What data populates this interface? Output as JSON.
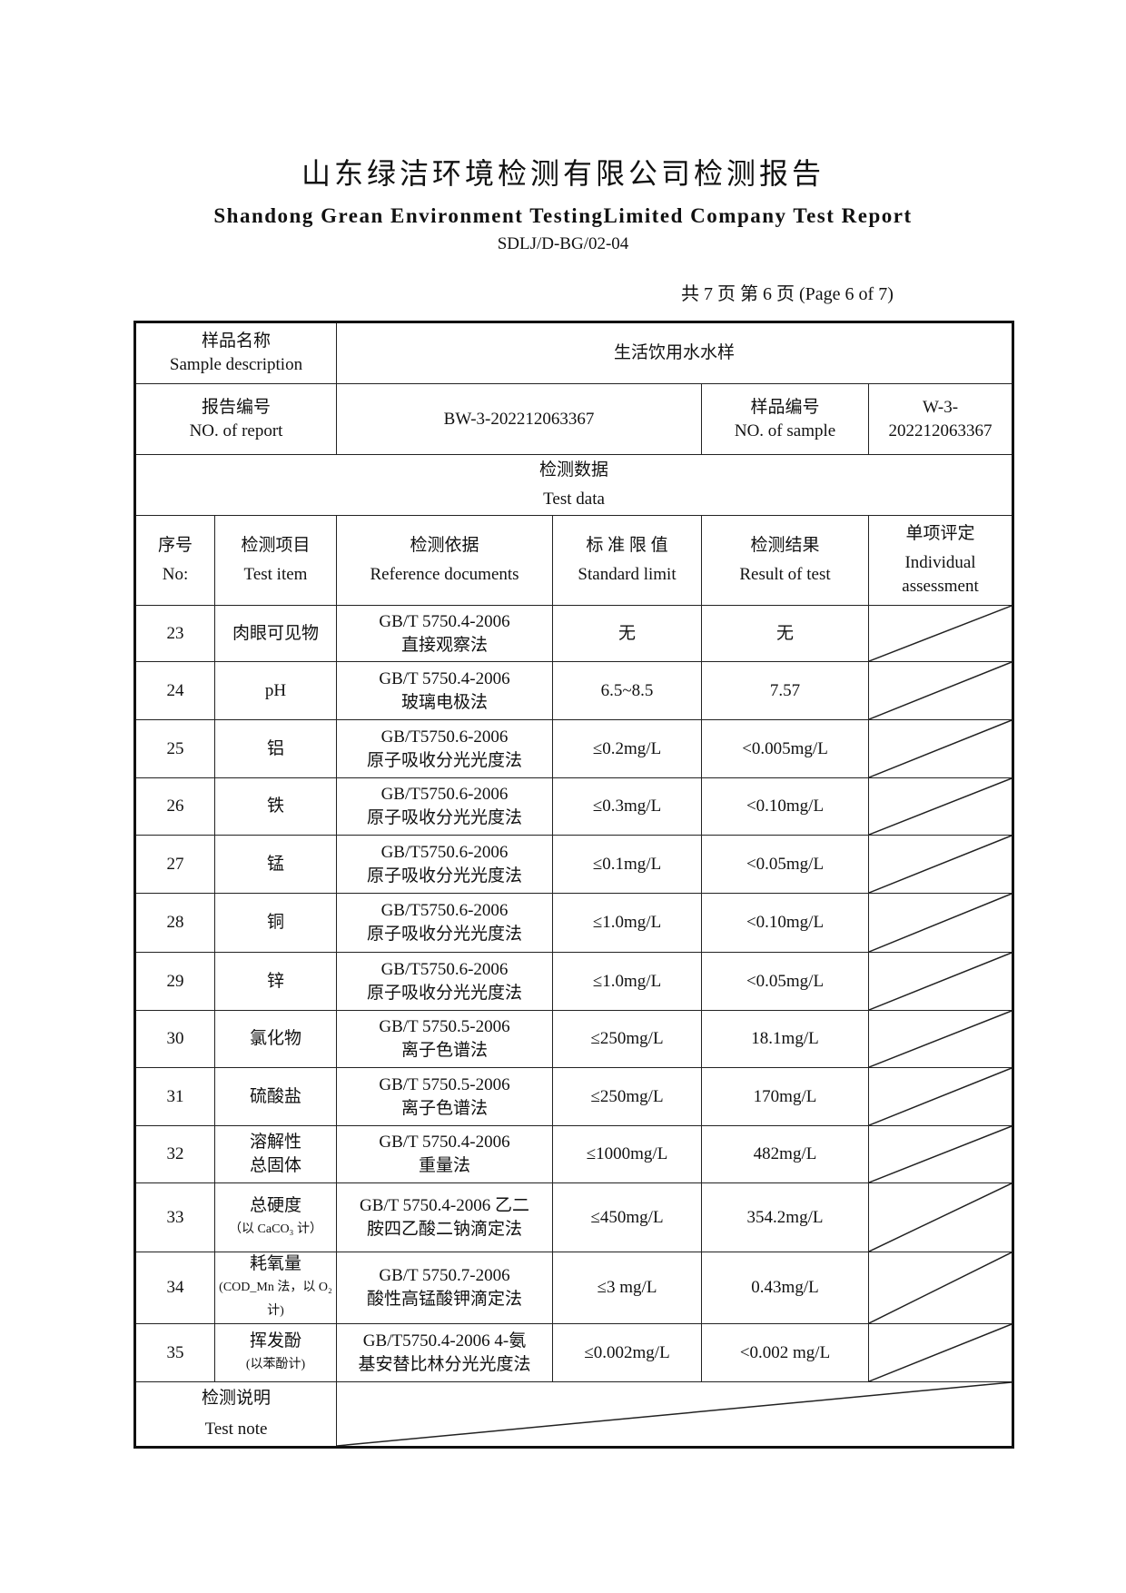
{
  "header": {
    "title_cn": "山东绿洁环境检测有限公司检测报告",
    "title_en": "Shandong Grean Environment TestingLimited Company Test Report",
    "doc_code": "SDLJ/D-BG/02-04",
    "page_info": "共 7 页  第 6 页  (Page 6 of 7)"
  },
  "sample": {
    "label_cn": "样品名称",
    "label_en": "Sample description",
    "value": "生活饮用水水样"
  },
  "report_no": {
    "label_cn": "报告编号",
    "label_en": "NO. of report",
    "value": "BW-3-202212063367"
  },
  "sample_no": {
    "label_cn": "样品编号",
    "label_en": "NO. of sample",
    "value": "W-3-202212063367"
  },
  "test_data": {
    "label_cn": "检测数据",
    "label_en": "Test data"
  },
  "columns": [
    {
      "cn": "序号",
      "en": "No:"
    },
    {
      "cn": "检测项目",
      "en": "Test item"
    },
    {
      "cn": "检测依据",
      "en": "Reference documents"
    },
    {
      "cn": "标 准 限 值",
      "en": "Standard limit"
    },
    {
      "cn": "检测结果",
      "en": "Result of test"
    },
    {
      "cn": "单项评定",
      "en": "Individual assessment"
    }
  ],
  "rows": [
    {
      "no": "23",
      "item": "肉眼可见物",
      "item2": "",
      "ref": "GB/T 5750.4-2006",
      "ref2": "直接观察法",
      "limit": "无",
      "result": "无"
    },
    {
      "no": "24",
      "item": "pH",
      "item2": "",
      "ref": "GB/T 5750.4-2006",
      "ref2": "玻璃电极法",
      "limit": "6.5~8.5",
      "result": "7.57"
    },
    {
      "no": "25",
      "item": "铝",
      "item2": "",
      "ref": "GB/T5750.6-2006",
      "ref2": "原子吸收分光光度法",
      "limit": "≤0.2mg/L",
      "result": "<0.005mg/L"
    },
    {
      "no": "26",
      "item": "铁",
      "item2": "",
      "ref": "GB/T5750.6-2006",
      "ref2": "原子吸收分光光度法",
      "limit": "≤0.3mg/L",
      "result": "<0.10mg/L"
    },
    {
      "no": "27",
      "item": "锰",
      "item2": "",
      "ref": "GB/T5750.6-2006",
      "ref2": "原子吸收分光光度法",
      "limit": "≤0.1mg/L",
      "result": "<0.05mg/L"
    },
    {
      "no": "28",
      "item": "铜",
      "item2": "",
      "ref": "GB/T5750.6-2006",
      "ref2": "原子吸收分光光度法",
      "limit": "≤1.0mg/L",
      "result": "<0.10mg/L"
    },
    {
      "no": "29",
      "item": "锌",
      "item2": "",
      "ref": "GB/T5750.6-2006",
      "ref2": "原子吸收分光光度法",
      "limit": "≤1.0mg/L",
      "result": "<0.05mg/L"
    },
    {
      "no": "30",
      "item": "氯化物",
      "item2": "",
      "ref": "GB/T 5750.5-2006",
      "ref2": "离子色谱法",
      "limit": "≤250mg/L",
      "result": "18.1mg/L"
    },
    {
      "no": "31",
      "item": "硫酸盐",
      "item2": "",
      "ref": "GB/T 5750.5-2006",
      "ref2": "离子色谱法",
      "limit": "≤250mg/L",
      "result": "170mg/L"
    },
    {
      "no": "32",
      "item": "溶解性",
      "item2": "总固体",
      "ref": "GB/T 5750.4-2006",
      "ref2": "重量法",
      "limit": "≤1000mg/L",
      "result": "482mg/L"
    },
    {
      "no": "33",
      "item": "总硬度",
      "item2": "（以 CaCO₃ 计）",
      "ref": "GB/T 5750.4-2006 乙二",
      "ref2": "胺四乙酸二钠滴定法",
      "limit": "≤450mg/L",
      "result": "354.2mg/L"
    },
    {
      "no": "34",
      "item": "耗氧量",
      "item2": "(COD_Mn 法，以 O₂ 计)",
      "ref": "GB/T 5750.7-2006",
      "ref2": "酸性高锰酸钾滴定法",
      "limit": "≤3 mg/L",
      "result": "0.43mg/L"
    },
    {
      "no": "35",
      "item": "挥发酚",
      "item2": "(以苯酚计)",
      "ref": "GB/T5750.4-2006 4-氨",
      "ref2": "基安替比林分光光度法",
      "limit": "≤0.002mg/L",
      "result": "<0.002 mg/L"
    }
  ],
  "note": {
    "label_cn": "检测说明",
    "label_en": "Test note"
  }
}
